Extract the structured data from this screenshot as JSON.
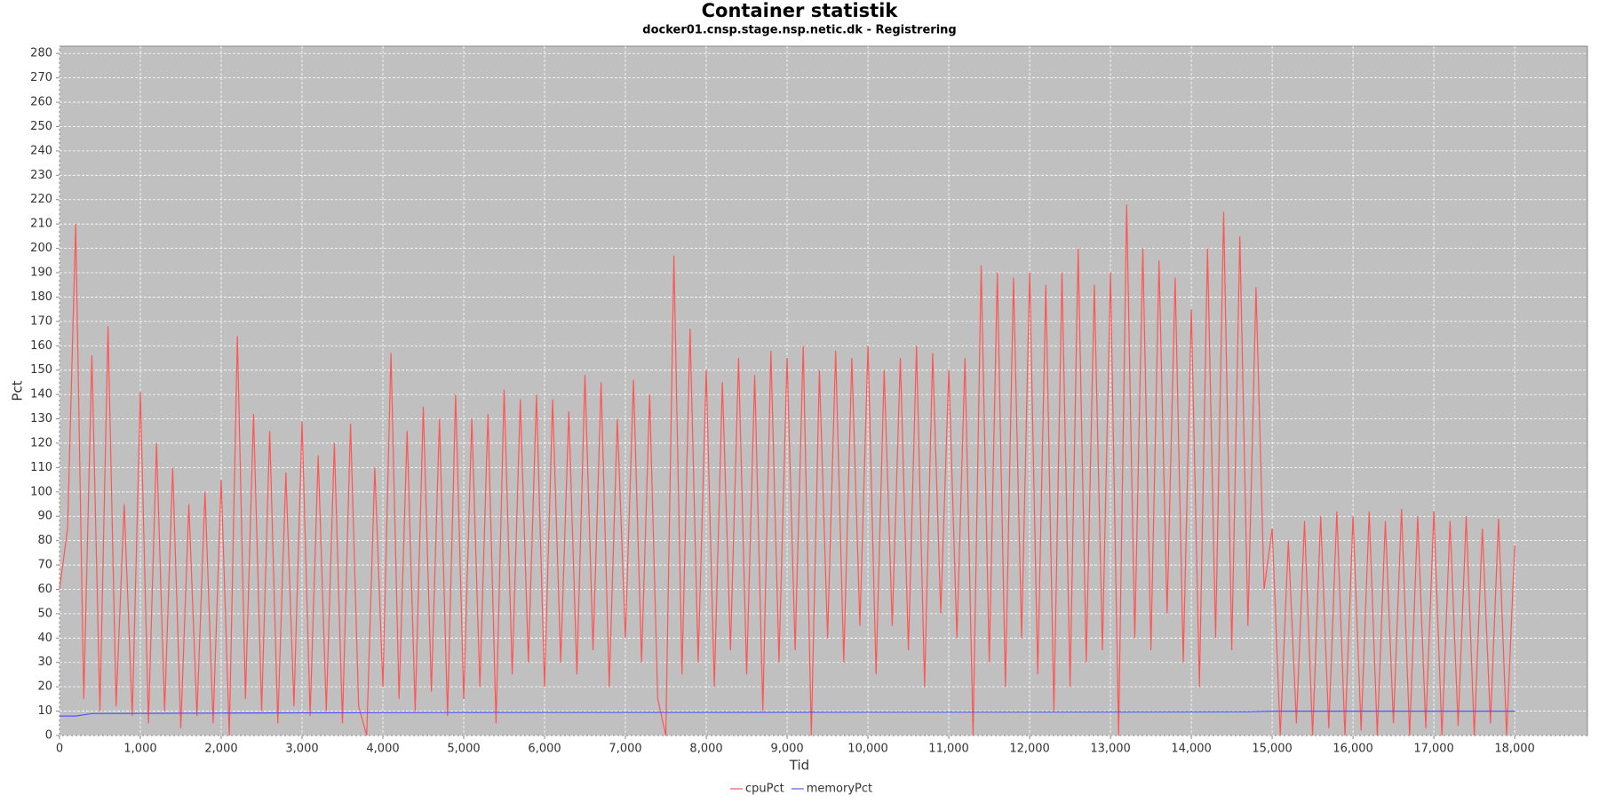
{
  "chart_data": {
    "type": "line",
    "title": "Container statistik",
    "subtitle": "docker01.cnsp.stage.nsp.netic.dk - Registrering",
    "x_label": "Tid",
    "y_label": "Pct",
    "xlim": [
      0,
      18900
    ],
    "ylim": [
      0,
      283
    ],
    "grid": true,
    "legend": "bottom",
    "xticks": [
      {
        "value": 0,
        "label": "0"
      },
      {
        "value": 1000,
        "label": "1,000"
      },
      {
        "value": 2000,
        "label": "2,000"
      },
      {
        "value": 3000,
        "label": "3,000"
      },
      {
        "value": 4000,
        "label": "4,000"
      },
      {
        "value": 5000,
        "label": "5,000"
      },
      {
        "value": 6000,
        "label": "6,000"
      },
      {
        "value": 7000,
        "label": "7,000"
      },
      {
        "value": 8000,
        "label": "8,000"
      },
      {
        "value": 9000,
        "label": "9,000"
      },
      {
        "value": 10000,
        "label": "10,000"
      },
      {
        "value": 11000,
        "label": "11,000"
      },
      {
        "value": 12000,
        "label": "12,000"
      },
      {
        "value": 13000,
        "label": "13,000"
      },
      {
        "value": 14000,
        "label": "14,000"
      },
      {
        "value": 15000,
        "label": "15,000"
      },
      {
        "value": 16000,
        "label": "16,000"
      },
      {
        "value": 17000,
        "label": "17,000"
      },
      {
        "value": 18000,
        "label": "18,000"
      }
    ],
    "yticks": [
      0,
      10,
      20,
      30,
      40,
      50,
      60,
      70,
      80,
      90,
      100,
      110,
      120,
      130,
      140,
      150,
      160,
      170,
      180,
      190,
      200,
      210,
      220,
      230,
      240,
      250,
      260,
      270,
      280
    ],
    "series": [
      {
        "name": "cpuPct",
        "color": "#ff5555",
        "x": [
          0,
          100,
          200,
          300,
          400,
          500,
          600,
          700,
          800,
          900,
          1000,
          1100,
          1200,
          1300,
          1400,
          1500,
          1600,
          1700,
          1800,
          1900,
          2000,
          2100,
          2200,
          2300,
          2400,
          2500,
          2600,
          2700,
          2800,
          2900,
          3000,
          3100,
          3200,
          3300,
          3400,
          3500,
          3600,
          3700,
          3800,
          3900,
          4000,
          4100,
          4200,
          4300,
          4400,
          4500,
          4600,
          4700,
          4800,
          4900,
          5000,
          5100,
          5200,
          5300,
          5400,
          5500,
          5600,
          5700,
          5800,
          5900,
          6000,
          6100,
          6200,
          6300,
          6400,
          6500,
          6600,
          6700,
          6800,
          6900,
          7000,
          7100,
          7200,
          7300,
          7400,
          7500,
          7600,
          7700,
          7800,
          7900,
          8000,
          8100,
          8200,
          8300,
          8400,
          8500,
          8600,
          8700,
          8800,
          8900,
          9000,
          9100,
          9200,
          9300,
          9400,
          9500,
          9600,
          9700,
          9800,
          9900,
          10000,
          10100,
          10200,
          10300,
          10400,
          10500,
          10600,
          10700,
          10800,
          10900,
          11000,
          11100,
          11200,
          11300,
          11400,
          11500,
          11600,
          11700,
          11800,
          11900,
          12000,
          12100,
          12200,
          12300,
          12400,
          12500,
          12600,
          12700,
          12800,
          12900,
          13000,
          13100,
          13200,
          13300,
          13400,
          13500,
          13600,
          13700,
          13800,
          13900,
          14000,
          14100,
          14200,
          14300,
          14400,
          14500,
          14600,
          14700,
          14800,
          14900,
          15000,
          15100,
          15200,
          15300,
          15400,
          15500,
          15600,
          15700,
          15800,
          15900,
          16000,
          16100,
          16200,
          16300,
          16400,
          16500,
          16600,
          16700,
          16800,
          16900,
          17000,
          17100,
          17200,
          17300,
          17400,
          17500,
          17600,
          17700,
          17800,
          17900,
          18000
        ],
        "values": [
          60,
          85,
          210,
          15,
          156,
          10,
          168,
          12,
          95,
          8,
          141,
          5,
          120,
          10,
          110,
          3,
          95,
          8,
          100,
          5,
          105,
          0,
          164,
          15,
          132,
          10,
          125,
          5,
          108,
          12,
          129,
          8,
          115,
          10,
          120,
          5,
          128,
          12,
          0,
          110,
          20,
          157,
          15,
          125,
          10,
          135,
          18,
          130,
          8,
          140,
          15,
          130,
          20,
          132,
          5,
          142,
          25,
          138,
          30,
          140,
          20,
          138,
          30,
          133,
          25,
          148,
          35,
          145,
          20,
          130,
          40,
          146,
          30,
          140,
          15,
          0,
          197,
          25,
          167,
          30,
          150,
          20,
          145,
          35,
          155,
          25,
          148,
          10,
          158,
          30,
          155,
          35,
          160,
          0,
          150,
          40,
          158,
          30,
          155,
          45,
          160,
          25,
          150,
          45,
          155,
          35,
          160,
          20,
          157,
          50,
          150,
          40,
          155,
          0,
          193,
          30,
          190,
          20,
          188,
          40,
          190,
          25,
          185,
          10,
          190,
          20,
          200,
          30,
          185,
          35,
          190,
          0,
          218,
          40,
          200,
          35,
          195,
          50,
          188,
          30,
          175,
          20,
          200,
          40,
          215,
          35,
          205,
          45,
          184,
          60,
          85,
          0,
          80,
          5,
          88,
          0,
          90,
          3,
          92,
          0,
          90,
          2,
          92,
          0,
          88,
          5,
          93,
          0,
          90,
          3,
          92,
          0,
          88,
          4,
          90,
          0,
          85,
          5,
          89,
          0,
          78
        ]
      },
      {
        "name": "memoryPct",
        "color": "#5555ff",
        "x": [
          0,
          200,
          400,
          2000,
          5000,
          10000,
          14700,
          15000,
          18000
        ],
        "values": [
          8,
          8,
          9,
          9.2,
          9.5,
          9.6,
          9.7,
          10,
          10
        ]
      }
    ]
  }
}
